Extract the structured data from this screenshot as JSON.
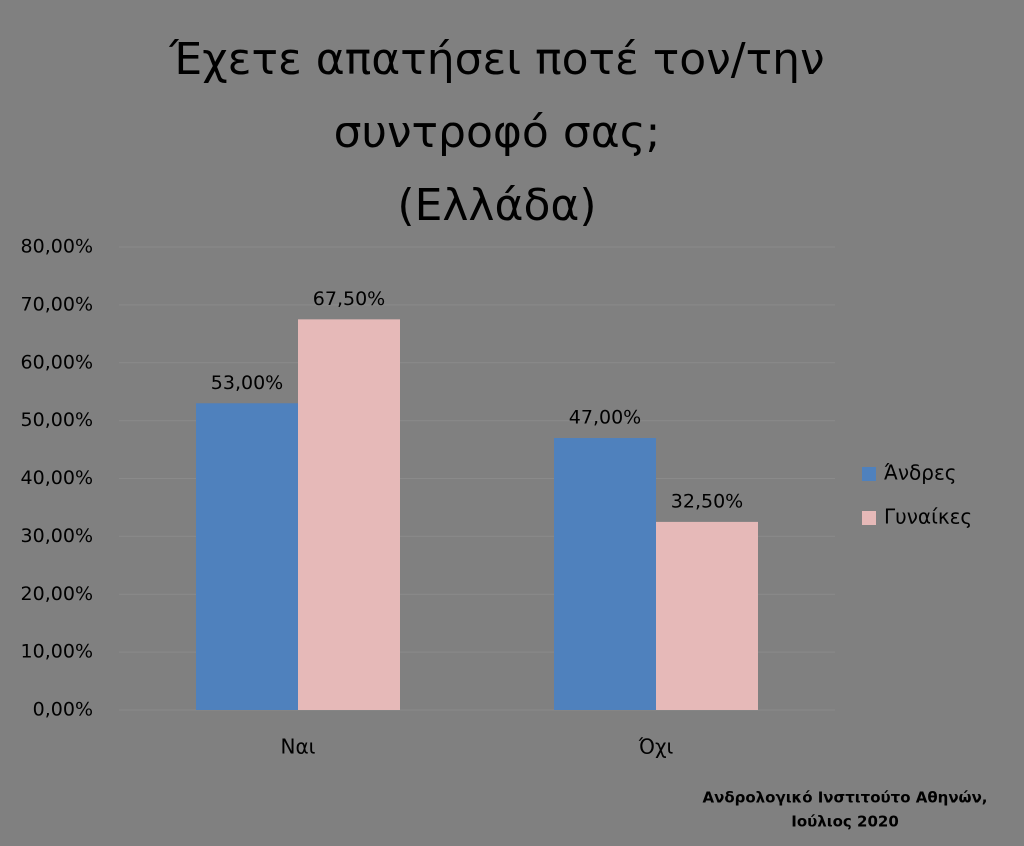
{
  "chart_data": {
    "type": "bar",
    "title": [
      "Έχετε απατήσει ποτέ τον/την",
      "συντροφό σας;",
      "(Ελλάδα)"
    ],
    "categories": [
      "Ναι",
      "Όχι"
    ],
    "series": [
      {
        "name": "Άνδρες",
        "color": "#4f81bd",
        "values": [
          53,
          47
        ],
        "value_labels": [
          "53,00%",
          "47,00%"
        ]
      },
      {
        "name": "Γυναίκες",
        "color": "#e6b9b8",
        "values": [
          67.5,
          32.5
        ],
        "value_labels": [
          "67,50%",
          "32,50%"
        ]
      }
    ],
    "ylim": [
      0,
      80
    ],
    "yticks": [
      {
        "value": 0,
        "label": "0,00%"
      },
      {
        "value": 10,
        "label": "10,00%"
      },
      {
        "value": 20,
        "label": "20,00%"
      },
      {
        "value": 30,
        "label": "30,00%"
      },
      {
        "value": 40,
        "label": "40,00%"
      },
      {
        "value": 50,
        "label": "50,00%"
      },
      {
        "value": 60,
        "label": "60,00%"
      },
      {
        "value": 70,
        "label": "70,00%"
      },
      {
        "value": 80,
        "label": "80,00%"
      }
    ],
    "grid": true,
    "legend": "right",
    "source": [
      "Ανδρολογικό Ινστιτούτο Αθηνών,",
      "Ιούλιος 2020"
    ]
  }
}
